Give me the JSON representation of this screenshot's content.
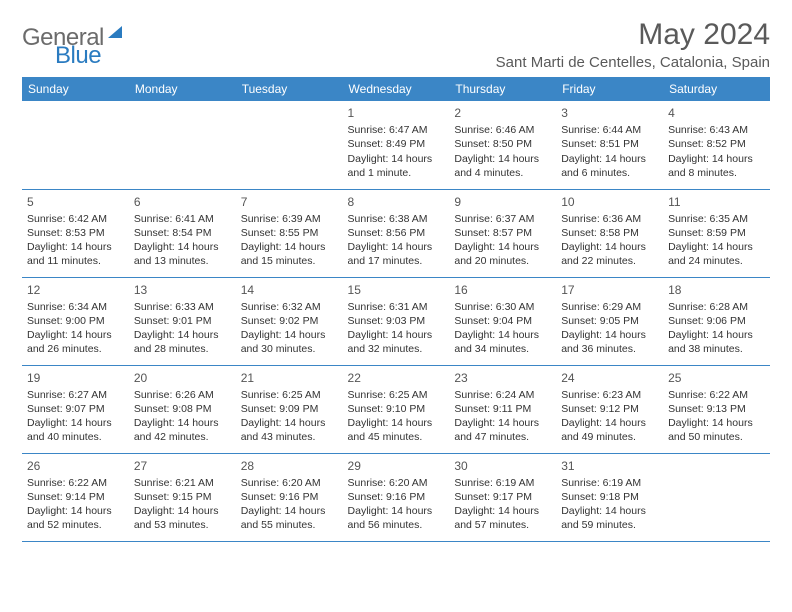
{
  "header": {
    "logo_general": "General",
    "logo_blue": "Blue",
    "month_title": "May 2024",
    "location": "Sant Marti de Centelles, Catalonia, Spain"
  },
  "style": {
    "header_bg": "#3b86c6",
    "header_text": "#ffffff",
    "border_color": "#3b86c6",
    "body_text": "#333333",
    "logo_gray": "#6b6b6b",
    "logo_blue": "#2a7bc0",
    "title_color": "#5a5a5a"
  },
  "day_names": [
    "Sunday",
    "Monday",
    "Tuesday",
    "Wednesday",
    "Thursday",
    "Friday",
    "Saturday"
  ],
  "weeks": [
    [
      null,
      null,
      null,
      {
        "d": "1",
        "sr": "6:47 AM",
        "ss": "8:49 PM",
        "dl": "14 hours and 1 minute."
      },
      {
        "d": "2",
        "sr": "6:46 AM",
        "ss": "8:50 PM",
        "dl": "14 hours and 4 minutes."
      },
      {
        "d": "3",
        "sr": "6:44 AM",
        "ss": "8:51 PM",
        "dl": "14 hours and 6 minutes."
      },
      {
        "d": "4",
        "sr": "6:43 AM",
        "ss": "8:52 PM",
        "dl": "14 hours and 8 minutes."
      }
    ],
    [
      {
        "d": "5",
        "sr": "6:42 AM",
        "ss": "8:53 PM",
        "dl": "14 hours and 11 minutes."
      },
      {
        "d": "6",
        "sr": "6:41 AM",
        "ss": "8:54 PM",
        "dl": "14 hours and 13 minutes."
      },
      {
        "d": "7",
        "sr": "6:39 AM",
        "ss": "8:55 PM",
        "dl": "14 hours and 15 minutes."
      },
      {
        "d": "8",
        "sr": "6:38 AM",
        "ss": "8:56 PM",
        "dl": "14 hours and 17 minutes."
      },
      {
        "d": "9",
        "sr": "6:37 AM",
        "ss": "8:57 PM",
        "dl": "14 hours and 20 minutes."
      },
      {
        "d": "10",
        "sr": "6:36 AM",
        "ss": "8:58 PM",
        "dl": "14 hours and 22 minutes."
      },
      {
        "d": "11",
        "sr": "6:35 AM",
        "ss": "8:59 PM",
        "dl": "14 hours and 24 minutes."
      }
    ],
    [
      {
        "d": "12",
        "sr": "6:34 AM",
        "ss": "9:00 PM",
        "dl": "14 hours and 26 minutes."
      },
      {
        "d": "13",
        "sr": "6:33 AM",
        "ss": "9:01 PM",
        "dl": "14 hours and 28 minutes."
      },
      {
        "d": "14",
        "sr": "6:32 AM",
        "ss": "9:02 PM",
        "dl": "14 hours and 30 minutes."
      },
      {
        "d": "15",
        "sr": "6:31 AM",
        "ss": "9:03 PM",
        "dl": "14 hours and 32 minutes."
      },
      {
        "d": "16",
        "sr": "6:30 AM",
        "ss": "9:04 PM",
        "dl": "14 hours and 34 minutes."
      },
      {
        "d": "17",
        "sr": "6:29 AM",
        "ss": "9:05 PM",
        "dl": "14 hours and 36 minutes."
      },
      {
        "d": "18",
        "sr": "6:28 AM",
        "ss": "9:06 PM",
        "dl": "14 hours and 38 minutes."
      }
    ],
    [
      {
        "d": "19",
        "sr": "6:27 AM",
        "ss": "9:07 PM",
        "dl": "14 hours and 40 minutes."
      },
      {
        "d": "20",
        "sr": "6:26 AM",
        "ss": "9:08 PM",
        "dl": "14 hours and 42 minutes."
      },
      {
        "d": "21",
        "sr": "6:25 AM",
        "ss": "9:09 PM",
        "dl": "14 hours and 43 minutes."
      },
      {
        "d": "22",
        "sr": "6:25 AM",
        "ss": "9:10 PM",
        "dl": "14 hours and 45 minutes."
      },
      {
        "d": "23",
        "sr": "6:24 AM",
        "ss": "9:11 PM",
        "dl": "14 hours and 47 minutes."
      },
      {
        "d": "24",
        "sr": "6:23 AM",
        "ss": "9:12 PM",
        "dl": "14 hours and 49 minutes."
      },
      {
        "d": "25",
        "sr": "6:22 AM",
        "ss": "9:13 PM",
        "dl": "14 hours and 50 minutes."
      }
    ],
    [
      {
        "d": "26",
        "sr": "6:22 AM",
        "ss": "9:14 PM",
        "dl": "14 hours and 52 minutes."
      },
      {
        "d": "27",
        "sr": "6:21 AM",
        "ss": "9:15 PM",
        "dl": "14 hours and 53 minutes."
      },
      {
        "d": "28",
        "sr": "6:20 AM",
        "ss": "9:16 PM",
        "dl": "14 hours and 55 minutes."
      },
      {
        "d": "29",
        "sr": "6:20 AM",
        "ss": "9:16 PM",
        "dl": "14 hours and 56 minutes."
      },
      {
        "d": "30",
        "sr": "6:19 AM",
        "ss": "9:17 PM",
        "dl": "14 hours and 57 minutes."
      },
      {
        "d": "31",
        "sr": "6:19 AM",
        "ss": "9:18 PM",
        "dl": "14 hours and 59 minutes."
      },
      null
    ]
  ],
  "labels": {
    "sunrise": "Sunrise:",
    "sunset": "Sunset:",
    "daylight": "Daylight:"
  }
}
